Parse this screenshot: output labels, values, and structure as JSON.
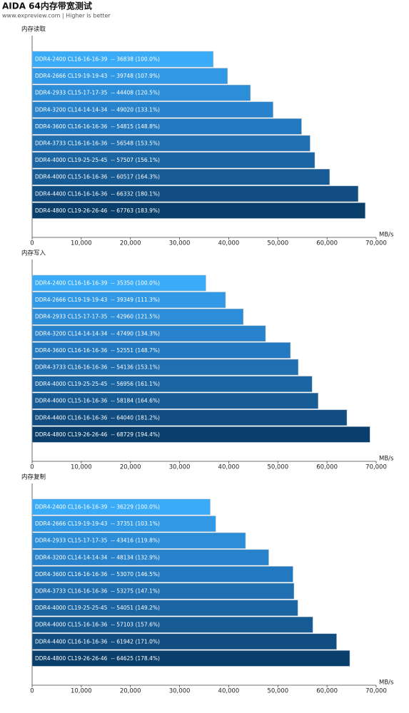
{
  "header": {
    "title": "AIDA 64内存带宽测试",
    "subtitle": "www.expreview.com | Higher is better"
  },
  "chart_data": [
    {
      "type": "bar",
      "orientation": "horizontal",
      "title": "内存读取",
      "categories": [
        "DDR4-2400 CL16-16-16-39",
        "DDR4-2666 CL19-19-19-43",
        "DDR4-2933 CL15-17-17-35",
        "DDR4-3200 CL14-14-14-34",
        "DDR4-3600 CL16-16-16-36",
        "DDR4-3733 CL16-16-16-36",
        "DDR4-4000 CL19-25-25-45",
        "DDR4-4000 CL15-16-16-36",
        "DDR4-4400 CL16-16-16-36",
        "DDR4-4800 CL19-26-26-46"
      ],
      "values": [
        36838,
        39748,
        44408,
        49020,
        54815,
        56548,
        57507,
        60517,
        66332,
        67763
      ],
      "value_labels": [
        "--  36838 (100.0%)",
        "--  39748 (107.9%)",
        "--  44408 (120.5%)",
        "--  49020 (133.1%)",
        "--  54815 (148.8%)",
        "--  56548 (153.5%)",
        "--  57507 (156.1%)",
        "--  60517 (164.3%)",
        "--  66332 (180.1%)",
        "--  67763 (183.9%)"
      ],
      "colors": [
        "#3aabf6",
        "#3199e6",
        "#2c8dd8",
        "#2883cc",
        "#2379bf",
        "#1f6fb1",
        "#1b65a3",
        "#175b95",
        "#114d81",
        "#0b3f6b"
      ],
      "xlim": [
        0,
        70000
      ],
      "xticks": [
        0,
        {
          "value": 10000,
          "label": "10,000"
        },
        {
          "value": 20000,
          "label": "20,000"
        },
        {
          "value": 30000,
          "label": "30,000"
        },
        {
          "value": 40000,
          "label": "40,000"
        },
        {
          "value": 50000,
          "label": "50,000"
        },
        {
          "value": 60000,
          "label": "60,000"
        },
        {
          "value": 70000,
          "label": "70,000"
        }
      ],
      "x_label": "MB/s"
    },
    {
      "type": "bar",
      "orientation": "horizontal",
      "title": "内存写入",
      "categories": [
        "DDR4-2400 CL16-16-16-39",
        "DDR4-2666 CL19-19-19-43",
        "DDR4-2933 CL15-17-17-35",
        "DDR4-3200 CL14-14-14-34",
        "DDR4-3600 CL16-16-16-36",
        "DDR4-3733 CL16-16-16-36",
        "DDR4-4000 CL19-25-25-45",
        "DDR4-4000 CL15-16-16-36",
        "DDR4-4400 CL16-16-16-36",
        "DDR4-4800 CL19-26-26-46"
      ],
      "values": [
        35350,
        39349,
        42960,
        47490,
        52551,
        54136,
        56956,
        58184,
        64040,
        68729
      ],
      "value_labels": [
        "--  35350 (100.0%)",
        "--  39349 (111.3%)",
        "--  42960 (121.5%)",
        "--  47490 (134.3%)",
        "--  52551 (148.7%)",
        "--  54136 (153.1%)",
        "--  56956 (161.1%)",
        "--  58184 (164.6%)",
        "--  64040 (181.2%)",
        "--  68729 (194.4%)"
      ],
      "colors": [
        "#3aabf6",
        "#3199e6",
        "#2c8dd8",
        "#2883cc",
        "#2379bf",
        "#1f6fb1",
        "#1b65a3",
        "#175b95",
        "#114d81",
        "#0b3f6b"
      ],
      "xlim": [
        0,
        70000
      ],
      "xticks": [
        0,
        {
          "value": 10000,
          "label": "10,000"
        },
        {
          "value": 20000,
          "label": "20,000"
        },
        {
          "value": 30000,
          "label": "30,000"
        },
        {
          "value": 40000,
          "label": "40,000"
        },
        {
          "value": 50000,
          "label": "50,000"
        },
        {
          "value": 60000,
          "label": "60,000"
        },
        {
          "value": 70000,
          "label": "70,000"
        }
      ],
      "x_label": "MB/s"
    },
    {
      "type": "bar",
      "orientation": "horizontal",
      "title": "内存复制",
      "categories": [
        "DDR4-2400 CL16-16-16-39",
        "DDR4-2666 CL19-19-19-43",
        "DDR4-2933 CL15-17-17-35",
        "DDR4-3200 CL14-14-14-34",
        "DDR4-3600 CL16-16-16-36",
        "DDR4-3733 CL16-16-16-36",
        "DDR4-4000 CL19-25-25-45",
        "DDR4-4000 CL15-16-16-36",
        "DDR4-4400 CL16-16-16-36",
        "DDR4-4800 CL19-26-26-46"
      ],
      "values": [
        36229,
        37351,
        43416,
        48134,
        53070,
        53275,
        54051,
        57103,
        61942,
        64625
      ],
      "value_labels": [
        "--  36229 (100.0%)",
        "--  37351 (103.1%)",
        "--  43416 (119.8%)",
        "--  48134 (132.9%)",
        "--  53070 (146.5%)",
        "--  53275 (147.1%)",
        "--  54051 (149.2%)",
        "--  57103 (157.6%)",
        "--  61942 (171.0%)",
        "--  64625 (178.4%)"
      ],
      "colors": [
        "#3aabf6",
        "#3199e6",
        "#2c8dd8",
        "#2883cc",
        "#2379bf",
        "#1f6fb1",
        "#1b65a3",
        "#175b95",
        "#114d81",
        "#0b3f6b"
      ],
      "xlim": [
        0,
        70000
      ],
      "xticks": [
        0,
        {
          "value": 10000,
          "label": "10,000"
        },
        {
          "value": 20000,
          "label": "20,000"
        },
        {
          "value": 30000,
          "label": "30,000"
        },
        {
          "value": 40000,
          "label": "40,000"
        },
        {
          "value": 50000,
          "label": "50,000"
        },
        {
          "value": 60000,
          "label": "60,000"
        },
        {
          "value": 70000,
          "label": "70,000"
        }
      ],
      "x_label": "MB/s"
    }
  ]
}
